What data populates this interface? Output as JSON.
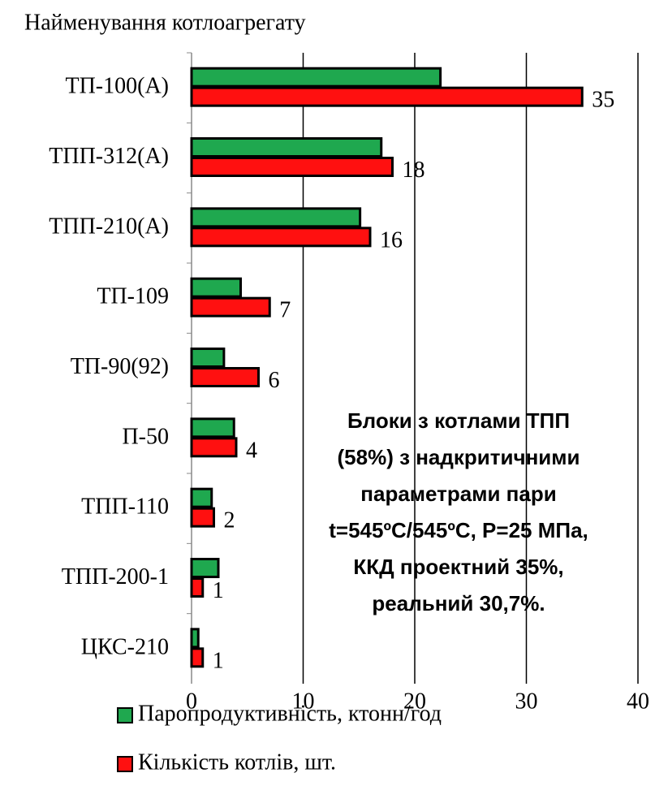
{
  "chart_data": {
    "type": "bar",
    "orientation": "horizontal",
    "y_axis_label": "Найменування котлоагрегату",
    "categories": [
      "ТП-100(А)",
      "ТПП-312(А)",
      "ТПП-210(А)",
      "ТП-109",
      "ТП-90(92)",
      "П-50",
      "ТПП-110",
      "ТПП-200-1",
      "ЦКС-210"
    ],
    "series": [
      {
        "name": "Паропродуктивність, ктонн/год",
        "color": "#1fa84f",
        "values": [
          22.3,
          17,
          15.1,
          4.4,
          2.9,
          3.8,
          1.8,
          2.4,
          0.6
        ]
      },
      {
        "name": "Кількість котлів, шт.",
        "color": "#ff1010",
        "values": [
          35,
          18,
          16,
          7,
          6,
          4,
          2,
          1,
          1
        ],
        "data_labels": true
      }
    ],
    "xlim": [
      0,
      40
    ],
    "xticks": [
      0,
      10,
      20,
      30,
      40
    ],
    "grid": true,
    "annotation": [
      "Блоки з котлами ТПП",
      "(58%) з надкритичними",
      "параметрами пари",
      "t=545ºC/545ºC, P=25 МПа,",
      "ККД проектний 35%,",
      "реальний 30,7%."
    ]
  }
}
